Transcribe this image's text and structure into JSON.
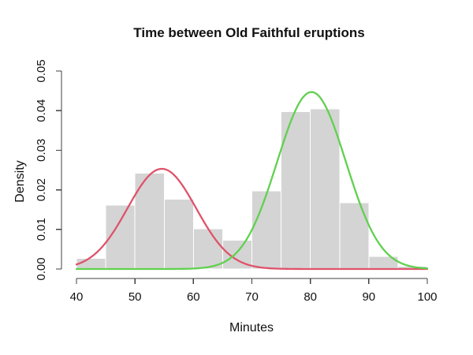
{
  "title": "Time between Old Faithful eruptions",
  "chart_data": {
    "type": "histogram",
    "title": "Time between Old Faithful eruptions",
    "xlabel": "Minutes",
    "ylabel": "Density",
    "xlim": [
      40,
      100
    ],
    "ylim": [
      0,
      0.05
    ],
    "grid": false,
    "legend": "none",
    "x_ticks": [
      40,
      50,
      60,
      70,
      80,
      90,
      100
    ],
    "y_ticks": [
      {
        "value": 0.0,
        "label": "0.00"
      },
      {
        "value": 0.01,
        "label": "0.01"
      },
      {
        "value": 0.02,
        "label": "0.02"
      },
      {
        "value": 0.03,
        "label": "0.03"
      },
      {
        "value": 0.04,
        "label": "0.04"
      },
      {
        "value": 0.05,
        "label": "0.05"
      }
    ],
    "bins": [
      {
        "from": 40,
        "to": 45,
        "density": 0.0027
      },
      {
        "from": 45,
        "to": 50,
        "density": 0.0161
      },
      {
        "from": 50,
        "to": 55,
        "density": 0.0242
      },
      {
        "from": 55,
        "to": 60,
        "density": 0.0176
      },
      {
        "from": 60,
        "to": 65,
        "density": 0.0102
      },
      {
        "from": 65,
        "to": 70,
        "density": 0.0073
      },
      {
        "from": 70,
        "to": 75,
        "density": 0.0197
      },
      {
        "from": 75,
        "to": 80,
        "density": 0.0397
      },
      {
        "from": 80,
        "to": 85,
        "density": 0.0404
      },
      {
        "from": 85,
        "to": 90,
        "density": 0.0167
      },
      {
        "from": 90,
        "to": 95,
        "density": 0.0032
      },
      {
        "from": 95,
        "to": 100,
        "density": 0.0007
      }
    ],
    "curves": [
      {
        "name": "red-density-curve",
        "color": "#DF536B",
        "peak_x": 54.6,
        "peak_density": 0.0253,
        "sd": 5.87
      },
      {
        "name": "green-density-curve",
        "color": "#61D04F",
        "peak_x": 80.2,
        "peak_density": 0.0447,
        "sd": 5.87
      }
    ],
    "colors": {
      "bar_fill": "#d4d4d4",
      "bar_border": "#ffffff",
      "axis": "#404040",
      "text": "#111111",
      "background": "#ffffff"
    }
  }
}
